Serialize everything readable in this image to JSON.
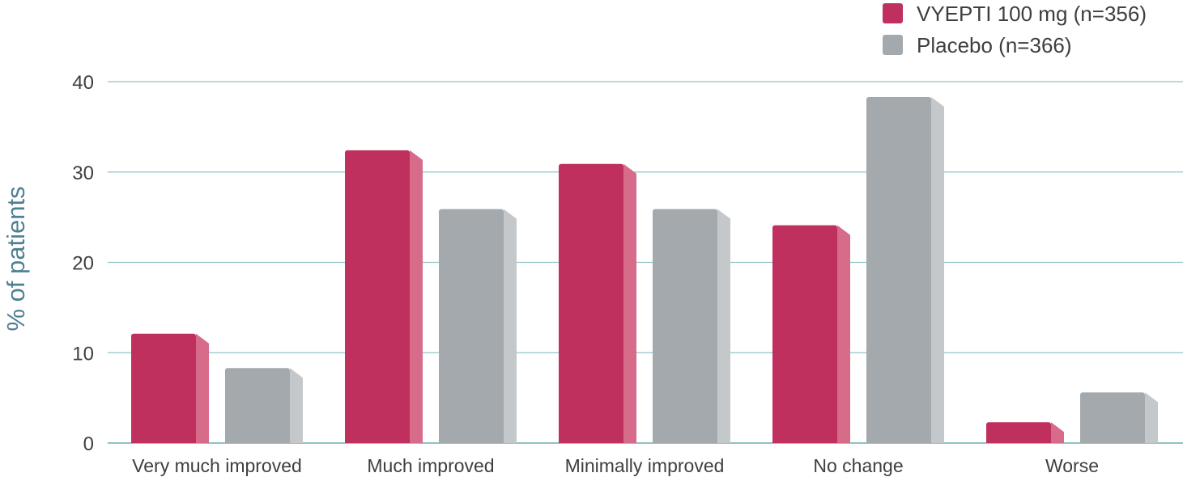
{
  "chart_data": {
    "type": "bar",
    "title": "",
    "xlabel": "",
    "ylabel": "% of patients",
    "ylim": [
      0,
      40
    ],
    "yticks": [
      0,
      10,
      20,
      30,
      40
    ],
    "grid": true,
    "legend_position": "top-right",
    "categories": [
      "Very much improved",
      "Much improved",
      "Minimally improved",
      "No change",
      "Worse"
    ],
    "series": [
      {
        "name": "VYEPTI 100 mg (n=356)",
        "values": [
          12.1,
          32.4,
          30.9,
          24.1,
          2.3
        ],
        "color": "#c0305e",
        "side_color": "#d76b8a"
      },
      {
        "name": "Placebo (n=366)",
        "values": [
          8.3,
          25.9,
          25.9,
          38.3,
          5.6
        ],
        "color": "#a3a9ac",
        "side_color": "#c4c8ca"
      }
    ],
    "gridline_color": "#8fc3c4"
  }
}
